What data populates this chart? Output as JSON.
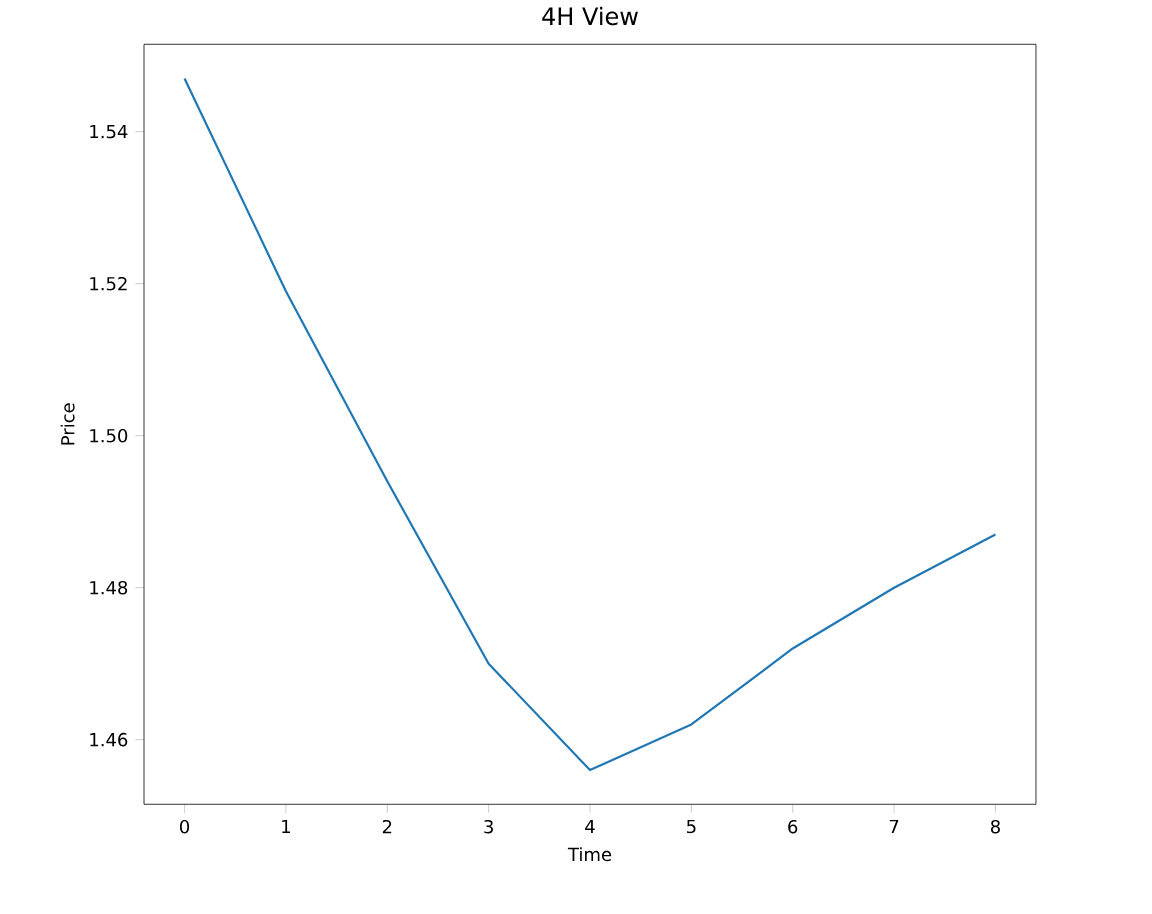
{
  "chart_data": {
    "type": "line",
    "title": "4H View",
    "xlabel": "Time",
    "ylabel": "Price",
    "x": [
      0,
      1,
      2,
      3,
      4,
      5,
      6,
      7,
      8
    ],
    "series": [
      {
        "color": "#1f77b4",
        "values": [
          1.547,
          1.519,
          1.494,
          1.47,
          1.456,
          1.462,
          1.472,
          1.48,
          1.487
        ]
      }
    ],
    "xlim": [
      -0.4,
      8.4
    ],
    "ylim": [
      1.4515,
      1.5515
    ],
    "xticks": [
      0,
      1,
      2,
      3,
      4,
      5,
      6,
      7,
      8
    ],
    "yticks": [
      {
        "value": 1.46,
        "label": "1.46"
      },
      {
        "value": 1.48,
        "label": "1.48"
      },
      {
        "value": 1.5,
        "label": "1.50"
      },
      {
        "value": 1.52,
        "label": "1.52"
      },
      {
        "value": 1.54,
        "label": "1.54"
      }
    ],
    "marker": "none",
    "line_style": "solid"
  }
}
